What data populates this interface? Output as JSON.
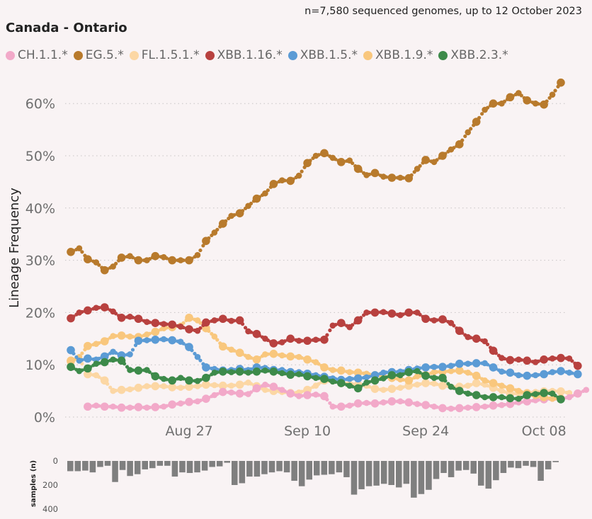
{
  "header": {
    "title": "Canada - Ontario",
    "subtitle": "n=7,580 sequenced genomes, up to 12 October 2023"
  },
  "chart_data": {
    "type": "line",
    "title": "Canada - Ontario",
    "xlabel": "",
    "ylabel": "Lineage Frequency",
    "ylim": [
      0,
      65
    ],
    "yticks": [
      "0%",
      "10%",
      "20%",
      "30%",
      "40%",
      "50%",
      "60%"
    ],
    "ytick_values": [
      0,
      10,
      20,
      30,
      40,
      50,
      60
    ],
    "x_start": "2023-08-14",
    "x_end": "2023-10-12",
    "xticks": [
      {
        "label": "Aug 27",
        "day": 13
      },
      {
        "label": "Sep 10",
        "day": 27
      },
      {
        "label": "Sep 24",
        "day": 41
      },
      {
        "label": "Oct 08",
        "day": 55
      }
    ],
    "series": [
      {
        "name": "CH.1.1.*",
        "color": "#f2a9c9",
        "values": [
          null,
          null,
          2.0,
          2.2,
          2.0,
          2.0,
          1.8,
          1.8,
          1.9,
          1.8,
          1.9,
          2.0,
          2.4,
          2.6,
          2.9,
          3.0,
          3.5,
          4.2,
          4.8,
          4.7,
          4.5,
          4.4,
          5.5,
          6.2,
          5.8,
          5.2,
          4.5,
          4.0,
          4.2,
          4.3,
          4.0,
          2.0,
          2.0,
          2.2,
          2.6,
          2.7,
          2.6,
          2.8,
          3.0,
          3.0,
          2.8,
          2.5,
          2.3,
          2.0,
          1.7,
          1.6,
          1.7,
          1.8,
          1.9,
          2.0,
          2.2,
          2.3,
          2.5,
          2.8,
          3.0,
          3.2,
          3.4,
          3.5,
          3.5,
          3.8,
          4.5,
          5.2
        ]
      },
      {
        "name": "EG.5.*",
        "color": "#b87a2c",
        "values": [
          31.6,
          32.3,
          30.2,
          29.6,
          28.1,
          28.8,
          30.5,
          30.8,
          30.0,
          30.0,
          30.8,
          30.6,
          30.0,
          30.0,
          30.0,
          31.0,
          33.7,
          35.3,
          37.0,
          38.5,
          39.0,
          40.4,
          41.8,
          42.8,
          44.6,
          45.3,
          45.2,
          46.2,
          48.6,
          50.0,
          50.5,
          49.6,
          48.8,
          49.1,
          47.5,
          46.3,
          46.7,
          46.0,
          45.8,
          45.8,
          45.7,
          47.5,
          49.2,
          48.8,
          50.0,
          51.2,
          52.2,
          54.5,
          56.5,
          58.8,
          60.0,
          60.0,
          61.2,
          62.0,
          60.6,
          60.0,
          59.8,
          61.7,
          64.0
        ]
      },
      {
        "name": "FL.1.5.1.*",
        "color": "#fcd7a4",
        "values": [
          10.6,
          11.2,
          8.2,
          8.0,
          7.0,
          5.0,
          5.2,
          5.3,
          5.6,
          5.9,
          5.9,
          5.9,
          5.7,
          5.6,
          5.8,
          5.9,
          6.2,
          6.1,
          6.0,
          6.0,
          6.2,
          6.6,
          5.9,
          5.2,
          5.0,
          4.8,
          4.6,
          4.7,
          5.2,
          6.0,
          7.0,
          6.8,
          6.5,
          6.4,
          6.2,
          6.0,
          5.4,
          5.2,
          5.4,
          5.6,
          6.0,
          6.2,
          6.5,
          6.4,
          6.0,
          5.8,
          5.8,
          6.0,
          6.5,
          6.2,
          5.6,
          5.0,
          4.5,
          4.5,
          4.6,
          4.8,
          4.9,
          5.0,
          4.9,
          4.6
        ]
      },
      {
        "name": "XBB.1.16.*",
        "color": "#b8413f",
        "values": [
          18.9,
          20.0,
          20.4,
          20.9,
          21.0,
          20.2,
          19.0,
          19.2,
          18.8,
          18.2,
          18.0,
          17.8,
          17.7,
          17.3,
          16.8,
          16.5,
          18.1,
          18.5,
          18.8,
          18.4,
          18.5,
          16.4,
          15.9,
          15.0,
          14.1,
          14.3,
          15.0,
          14.6,
          14.6,
          14.8,
          14.8,
          17.5,
          18.0,
          17.2,
          18.5,
          20.0,
          20.0,
          20.1,
          19.8,
          19.5,
          20.0,
          20.0,
          18.8,
          18.5,
          18.7,
          18.0,
          16.5,
          15.3,
          15.0,
          14.5,
          12.7,
          11.3,
          10.9,
          11.0,
          10.8,
          10.5,
          11.0,
          11.2,
          11.3,
          11.2,
          9.8
        ]
      },
      {
        "name": "XBB.1.5.*",
        "color": "#5b9bd5",
        "values": [
          12.8,
          10.8,
          11.2,
          11.0,
          11.6,
          12.5,
          11.8,
          12.0,
          14.6,
          14.7,
          14.8,
          14.9,
          14.7,
          14.4,
          13.4,
          11.5,
          9.5,
          9.2,
          8.9,
          9.0,
          9.2,
          9.0,
          9.5,
          9.4,
          9.0,
          9.0,
          8.6,
          8.6,
          8.3,
          8.0,
          7.7,
          7.4,
          7.1,
          7.3,
          7.4,
          7.6,
          8.0,
          8.5,
          8.6,
          8.7,
          9.0,
          9.3,
          9.5,
          9.6,
          9.6,
          9.8,
          10.2,
          10.2,
          10.3,
          10.3,
          9.5,
          8.7,
          8.5,
          8.0,
          7.9,
          8.0,
          8.2,
          8.6,
          8.8,
          8.5,
          8.2
        ]
      },
      {
        "name": "XBB.1.9.*",
        "color": "#f9c77d",
        "values": [
          10.8,
          11.5,
          13.6,
          14.0,
          14.5,
          15.5,
          15.6,
          15.4,
          15.3,
          15.8,
          16.3,
          17.0,
          17.2,
          17.5,
          19.0,
          18.5,
          17.0,
          15.4,
          13.5,
          12.9,
          12.3,
          11.5,
          11.0,
          12.0,
          12.1,
          11.8,
          11.6,
          11.5,
          11.0,
          10.5,
          9.5,
          9.0,
          8.9,
          8.6,
          8.5,
          8.3,
          8.0,
          7.8,
          7.5,
          7.2,
          7.0,
          7.8,
          8.0,
          8.6,
          8.7,
          8.8,
          8.9,
          8.5,
          7.9,
          7.0,
          6.5,
          6.0,
          5.5,
          5.0,
          4.5,
          4.0,
          3.8,
          3.5,
          3.5
        ]
      },
      {
        "name": "XBB.2.3.*",
        "color": "#3d8a4a",
        "values": [
          9.6,
          8.8,
          9.3,
          10.2,
          10.5,
          11.0,
          10.8,
          9.0,
          8.9,
          9.0,
          7.8,
          7.3,
          7.0,
          7.5,
          7.0,
          6.9,
          7.5,
          8.5,
          8.7,
          8.6,
          8.7,
          8.5,
          8.7,
          8.9,
          8.7,
          8.4,
          8.1,
          8.2,
          7.8,
          7.5,
          7.3,
          6.8,
          6.5,
          6.0,
          5.5,
          6.6,
          7.0,
          7.4,
          8.0,
          8.0,
          8.6,
          8.8,
          7.9,
          7.5,
          7.5,
          5.8,
          5.0,
          4.5,
          4.2,
          3.8,
          3.8,
          3.8,
          3.6,
          3.5,
          4.2,
          4.4,
          4.6,
          4.5,
          3.4
        ]
      }
    ]
  },
  "samples": {
    "ylabel": "samples (n)",
    "yticks": [
      "0",
      "200",
      "400"
    ],
    "ytick_values": [
      0,
      200,
      400
    ],
    "ymax": 400,
    "values": [
      85,
      85,
      80,
      95,
      50,
      40,
      175,
      75,
      125,
      110,
      70,
      60,
      40,
      40,
      130,
      95,
      100,
      95,
      80,
      50,
      45,
      15,
      200,
      185,
      130,
      130,
      110,
      95,
      85,
      95,
      165,
      210,
      155,
      120,
      115,
      110,
      95,
      135,
      280,
      235,
      210,
      205,
      190,
      200,
      220,
      190,
      305,
      275,
      240,
      150,
      100,
      135,
      80,
      75,
      105,
      205,
      230,
      160,
      100,
      55,
      60,
      40,
      50,
      165,
      70,
      10
    ]
  }
}
